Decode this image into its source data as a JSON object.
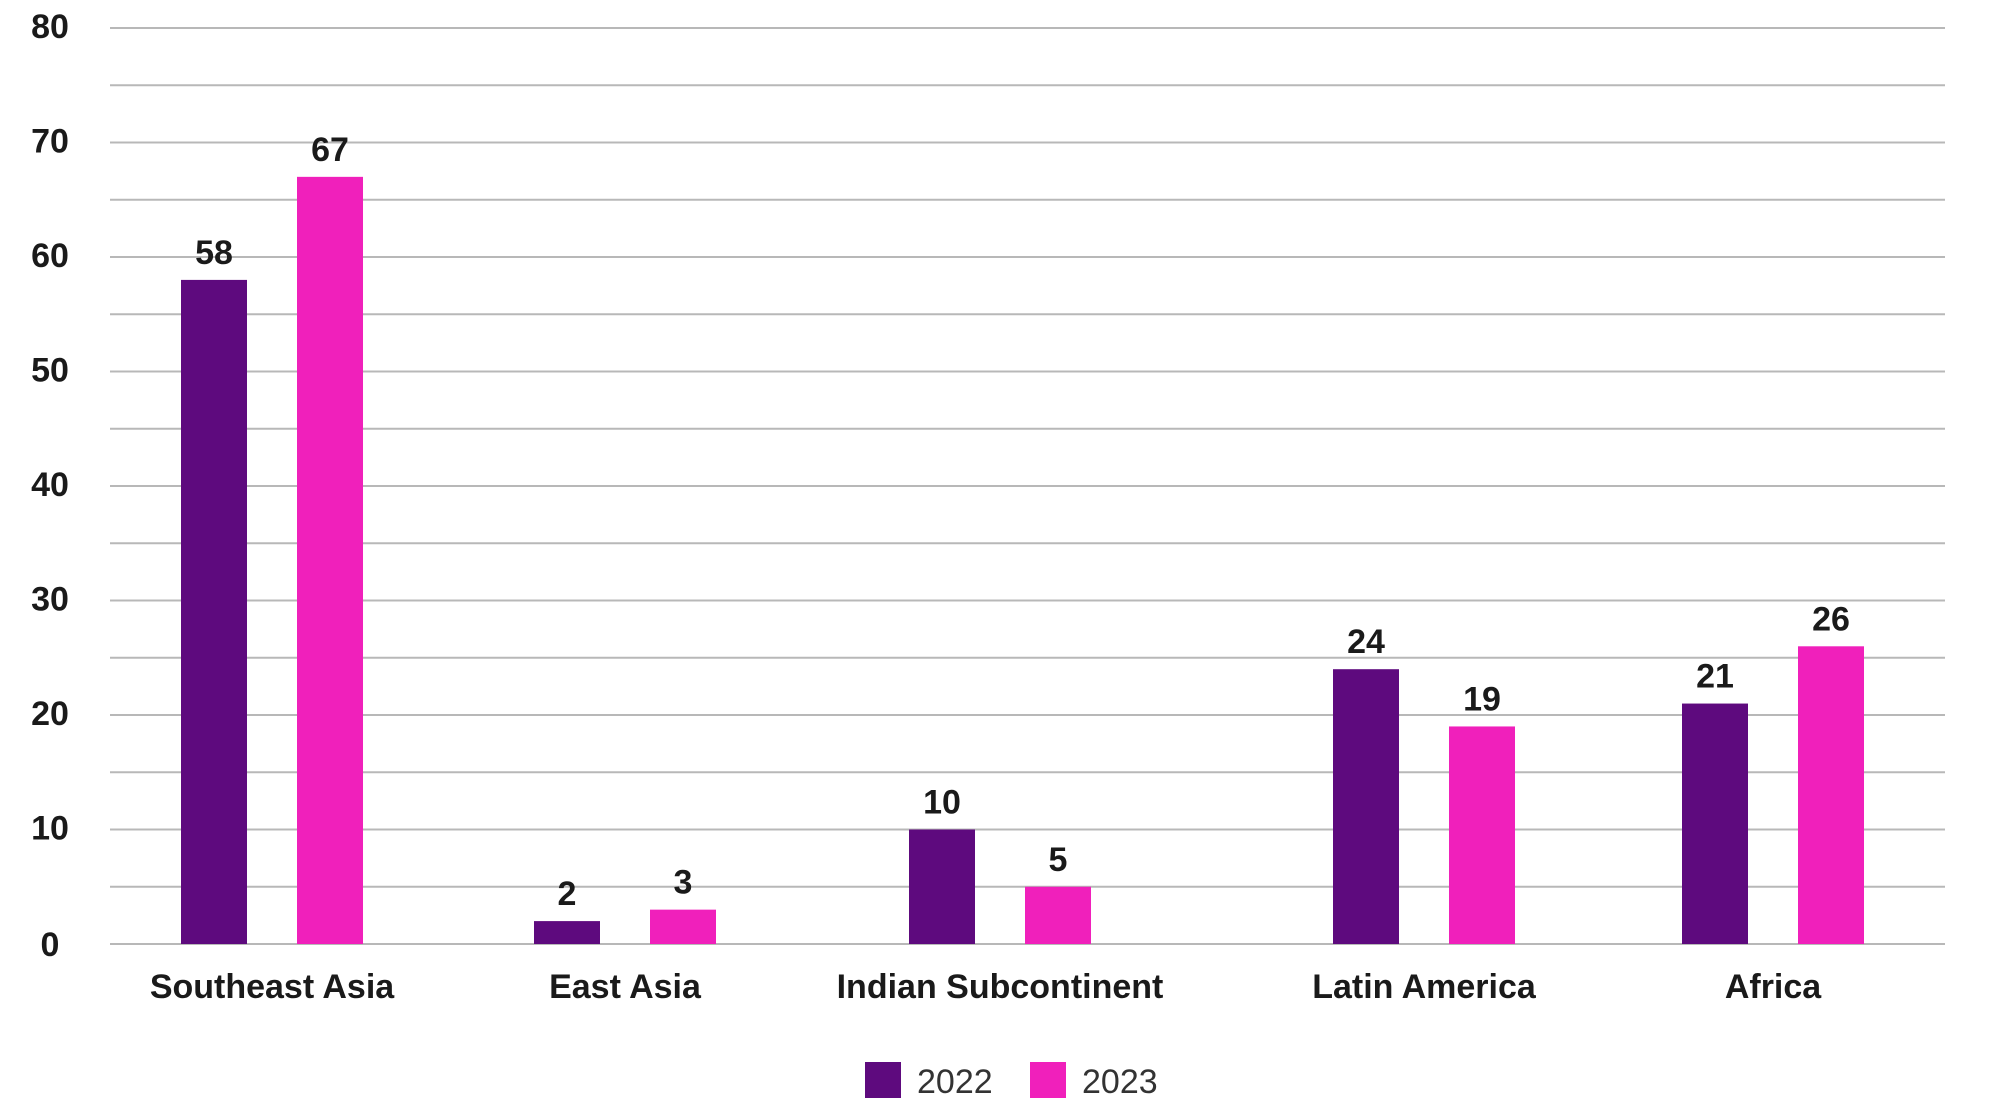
{
  "chart_data": {
    "type": "bar",
    "categories": [
      "Southeast Asia",
      "East Asia",
      "Indian Subcontinent",
      "Latin America",
      "Africa"
    ],
    "series": [
      {
        "name": "2022",
        "color": "#5e0a7e",
        "values": [
          58,
          2,
          10,
          24,
          21
        ]
      },
      {
        "name": "2023",
        "color": "#f020bb",
        "values": [
          67,
          3,
          5,
          19,
          26
        ]
      }
    ],
    "title": "",
    "xlabel": "",
    "ylabel": "",
    "ylim": [
      0,
      80
    ],
    "yticks": [
      0,
      10,
      20,
      30,
      40,
      50,
      60,
      70,
      80
    ],
    "grid": true,
    "legend_position": "bottom-center"
  }
}
